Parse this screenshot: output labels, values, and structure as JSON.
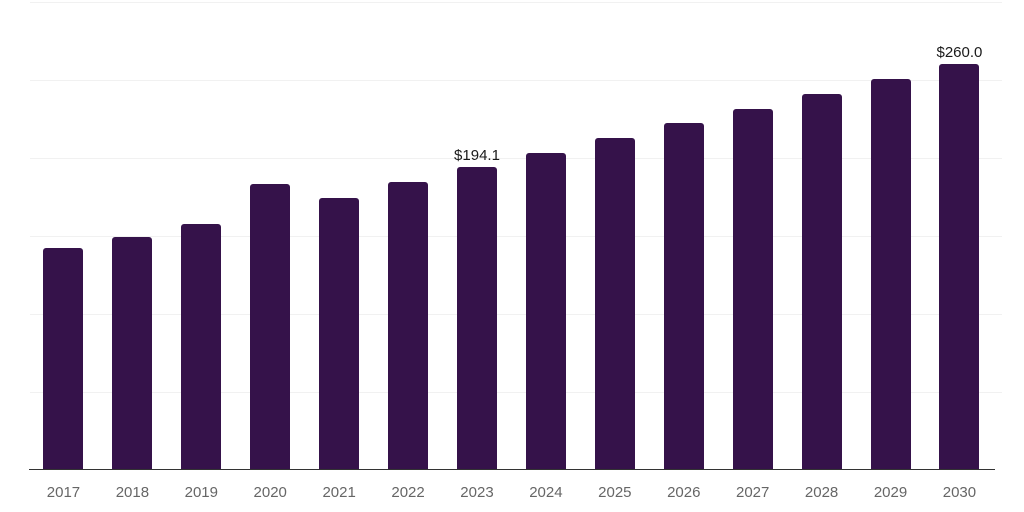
{
  "chart_data": {
    "type": "bar",
    "title": "",
    "xlabel": "",
    "ylabel": "",
    "categories": [
      "2017",
      "2018",
      "2019",
      "2020",
      "2021",
      "2022",
      "2023",
      "2024",
      "2025",
      "2026",
      "2027",
      "2028",
      "2029",
      "2030"
    ],
    "values": [
      142.3,
      149.4,
      157.7,
      183.3,
      174.4,
      184.6,
      194.1,
      203.2,
      212.8,
      222.4,
      231.4,
      241.0,
      250.6,
      260.0
    ],
    "data_labels": [
      {
        "category": "2023",
        "text": "$194.1"
      },
      {
        "category": "2030",
        "text": "$260.0"
      }
    ],
    "ylim": [
      0,
      300
    ],
    "gridline_interval": 50,
    "grid": "horizontal",
    "legend": false,
    "y_tick_labels_visible": false,
    "bar_color": "#35124a",
    "axis_line_color": "#333333",
    "tick_label_color": "#666666",
    "data_label_color": "#1a1a1a",
    "gridline_color": "#f1f1f1",
    "background": "#ffffff"
  }
}
